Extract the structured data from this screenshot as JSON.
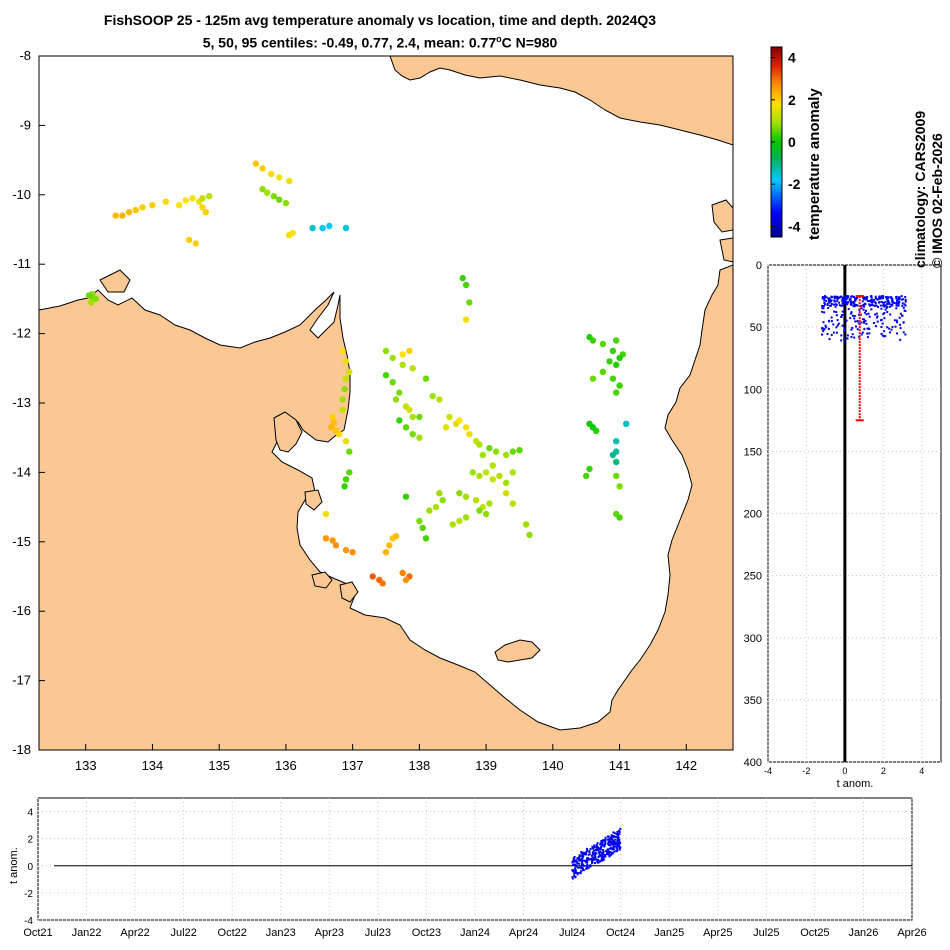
{
  "header": {
    "title_line1": "FishSOOP 25 - 125m avg temperature anomaly vs location, time and depth. 2024Q3",
    "title_line2_prefix": "5, 50, 95 centiles: -0.49, 0.77, 2.4, mean: 0.77",
    "title_line2_unit_sup": "o",
    "title_line2_suffix": "C N=980"
  },
  "side_labels": {
    "climatology": "climatology: CARS2009",
    "copyright": "© IMOS 02-Feb-2026",
    "colorbar_label": "temperature anomaly"
  },
  "colors": {
    "land": "#fbc894",
    "profile_points": "#0000ee",
    "centile_bar": "#ff0000"
  },
  "chart_data": [
    {
      "id": "map",
      "type": "scatter",
      "title": "",
      "xlabel": "",
      "ylabel": "",
      "xlim": [
        132.3,
        142.7
      ],
      "ylim": [
        -18,
        -8
      ],
      "xticks": [
        133,
        134,
        135,
        136,
        137,
        138,
        139,
        140,
        141,
        142
      ],
      "yticks": [
        -8,
        -9,
        -10,
        -11,
        -12,
        -13,
        -14,
        -15,
        -16,
        -17,
        -18
      ],
      "color_variable": "temperature anomaly",
      "clim": [
        -4.5,
        4.5
      ],
      "colorbar_ticks": [
        4,
        2,
        0,
        -2,
        -4
      ],
      "points": [
        [
          133.1,
          -11.43,
          0.8
        ],
        [
          133.1,
          -11.48,
          0.7
        ],
        [
          133.05,
          -11.45,
          0.6
        ],
        [
          133.15,
          -11.5,
          0.7
        ],
        [
          133.08,
          -11.55,
          0.9
        ],
        [
          133.45,
          -10.3,
          2.2
        ],
        [
          133.55,
          -10.3,
          2.3
        ],
        [
          133.65,
          -10.25,
          2.2
        ],
        [
          133.75,
          -10.22,
          2.1
        ],
        [
          133.85,
          -10.18,
          2.0
        ],
        [
          134.0,
          -10.15,
          2.0
        ],
        [
          134.2,
          -10.1,
          1.9
        ],
        [
          134.4,
          -10.15,
          1.8
        ],
        [
          134.5,
          -10.08,
          1.8
        ],
        [
          134.6,
          -10.05,
          1.7
        ],
        [
          134.7,
          -10.1,
          1.6
        ],
        [
          134.75,
          -10.18,
          1.9
        ],
        [
          134.8,
          -10.25,
          2.0
        ],
        [
          134.55,
          -10.65,
          2.0
        ],
        [
          134.65,
          -10.7,
          2.0
        ],
        [
          134.75,
          -10.05,
          1.2
        ],
        [
          134.85,
          -10.02,
          1.1
        ],
        [
          135.55,
          -9.55,
          2.1
        ],
        [
          135.65,
          -9.62,
          2.0
        ],
        [
          135.78,
          -9.7,
          1.9
        ],
        [
          135.9,
          -9.75,
          1.7
        ],
        [
          136.05,
          -9.8,
          1.6
        ],
        [
          135.65,
          -9.92,
          0.8
        ],
        [
          135.72,
          -9.97,
          0.9
        ],
        [
          135.82,
          -10.02,
          0.7
        ],
        [
          135.9,
          -10.07,
          0.6
        ],
        [
          136.0,
          -10.12,
          0.8
        ],
        [
          136.05,
          -10.58,
          1.7
        ],
        [
          136.1,
          -10.55,
          1.8
        ],
        [
          136.4,
          -10.48,
          -1.5
        ],
        [
          136.55,
          -10.48,
          -1.7
        ],
        [
          136.65,
          -10.45,
          -1.8
        ],
        [
          136.9,
          -10.48,
          -1.6
        ],
        [
          136.85,
          -12.25,
          1.8
        ],
        [
          136.9,
          -12.4,
          1.6
        ],
        [
          136.95,
          -12.55,
          1.4
        ],
        [
          136.9,
          -12.65,
          1.2
        ],
        [
          136.88,
          -12.8,
          0.8
        ],
        [
          136.85,
          -12.95,
          0.9
        ],
        [
          136.85,
          -13.1,
          1.2
        ],
        [
          136.7,
          -13.2,
          2.0
        ],
        [
          136.72,
          -13.28,
          2.2
        ],
        [
          136.68,
          -13.35,
          2.3
        ],
        [
          136.75,
          -13.4,
          2.1
        ],
        [
          136.8,
          -13.45,
          1.9
        ],
        [
          136.9,
          -13.55,
          1.5
        ],
        [
          136.95,
          -13.7,
          0.6
        ],
        [
          136.95,
          -14.0,
          0.5
        ],
        [
          136.9,
          -14.1,
          0.4
        ],
        [
          136.88,
          -14.2,
          0.3
        ],
        [
          136.6,
          -14.6,
          1.7
        ],
        [
          136.6,
          -14.95,
          2.6
        ],
        [
          136.7,
          -14.98,
          2.6
        ],
        [
          136.75,
          -15.05,
          2.7
        ],
        [
          136.9,
          -15.12,
          2.6
        ],
        [
          137.0,
          -15.15,
          2.7
        ],
        [
          137.3,
          -15.5,
          3.1
        ],
        [
          137.4,
          -15.55,
          3.0
        ],
        [
          137.45,
          -15.6,
          2.9
        ],
        [
          137.55,
          -15.05,
          2.2
        ],
        [
          137.6,
          -14.95,
          2.1
        ],
        [
          137.65,
          -14.92,
          2.2
        ],
        [
          137.5,
          -15.15,
          2.3
        ],
        [
          137.75,
          -15.45,
          2.8
        ],
        [
          137.85,
          -15.5,
          3.0
        ],
        [
          137.8,
          -15.55,
          2.7
        ],
        [
          137.5,
          -12.25,
          0.8
        ],
        [
          137.6,
          -12.35,
          0.9
        ],
        [
          137.75,
          -12.45,
          1.0
        ],
        [
          137.9,
          -12.5,
          1.1
        ],
        [
          137.75,
          -12.3,
          1.8
        ],
        [
          137.85,
          -12.25,
          2.0
        ],
        [
          137.5,
          -12.6,
          0.4
        ],
        [
          137.6,
          -12.7,
          0.6
        ],
        [
          137.7,
          -12.85,
          0.7
        ],
        [
          137.65,
          -12.95,
          0.8
        ],
        [
          137.8,
          -13.05,
          1.2
        ],
        [
          137.85,
          -13.1,
          1.4
        ],
        [
          137.7,
          -13.25,
          0.3
        ],
        [
          137.8,
          -13.35,
          0.5
        ],
        [
          137.9,
          -13.45,
          0.7
        ],
        [
          138.0,
          -13.5,
          0.9
        ],
        [
          137.9,
          -13.2,
          1.0
        ],
        [
          138.0,
          -13.2,
          0.6
        ],
        [
          138.1,
          -12.65,
          0.6
        ],
        [
          138.2,
          -12.9,
          0.9
        ],
        [
          138.3,
          -12.95,
          1.1
        ],
        [
          138.45,
          -13.2,
          1.3
        ],
        [
          138.55,
          -13.3,
          1.4
        ],
        [
          138.4,
          -13.35,
          1.5
        ],
        [
          138.6,
          -13.25,
          1.8
        ],
        [
          138.7,
          -13.35,
          1.7
        ],
        [
          138.75,
          -13.45,
          1.6
        ],
        [
          138.85,
          -13.55,
          1.2
        ],
        [
          138.9,
          -13.6,
          1.0
        ],
        [
          138.95,
          -13.75,
          0.9
        ],
        [
          139.05,
          -13.65,
          0.6
        ],
        [
          139.15,
          -13.7,
          0.8
        ],
        [
          139.3,
          -13.75,
          0.9
        ],
        [
          139.4,
          -13.7,
          0.6
        ],
        [
          139.5,
          -13.68,
          0.5
        ],
        [
          139.1,
          -13.9,
          1.1
        ],
        [
          138.8,
          -14.0,
          0.9
        ],
        [
          138.9,
          -14.05,
          1.0
        ],
        [
          139.0,
          -14.0,
          1.2
        ],
        [
          139.1,
          -14.1,
          1.3
        ],
        [
          139.2,
          -14.05,
          1.1
        ],
        [
          139.3,
          -14.15,
          0.9
        ],
        [
          139.4,
          -14.0,
          1.0
        ],
        [
          138.6,
          -14.3,
          0.8
        ],
        [
          138.7,
          -14.35,
          0.9
        ],
        [
          138.85,
          -14.4,
          1.1
        ],
        [
          138.95,
          -14.5,
          1.2
        ],
        [
          139.05,
          -14.45,
          1.0
        ],
        [
          138.9,
          -14.55,
          0.7
        ],
        [
          139.0,
          -14.6,
          0.8
        ],
        [
          138.7,
          -14.65,
          0.9
        ],
        [
          138.6,
          -14.7,
          1.2
        ],
        [
          138.5,
          -14.75,
          1.0
        ],
        [
          138.3,
          -14.3,
          0.9
        ],
        [
          138.35,
          -14.4,
          0.8
        ],
        [
          138.25,
          -14.5,
          1.0
        ],
        [
          138.15,
          -14.55,
          0.9
        ],
        [
          138.0,
          -14.7,
          0.7
        ],
        [
          138.05,
          -14.8,
          0.5
        ],
        [
          138.1,
          -14.95,
          0.4
        ],
        [
          137.8,
          -14.35,
          0.3
        ],
        [
          139.3,
          -14.3,
          1.3
        ],
        [
          139.4,
          -14.45,
          1.1
        ],
        [
          139.6,
          -14.75,
          0.9
        ],
        [
          139.65,
          -14.9,
          0.8
        ],
        [
          138.65,
          -11.2,
          0.3
        ],
        [
          138.7,
          -11.3,
          0.4
        ],
        [
          138.75,
          -11.55,
          0.6
        ],
        [
          138.7,
          -11.8,
          1.7
        ],
        [
          140.55,
          -12.05,
          0.2
        ],
        [
          140.6,
          -12.1,
          0.3
        ],
        [
          140.75,
          -12.15,
          0.5
        ],
        [
          140.95,
          -12.1,
          0.4
        ],
        [
          140.9,
          -12.25,
          0.3
        ],
        [
          141.05,
          -12.3,
          0.4
        ],
        [
          141.0,
          -12.35,
          0.2
        ],
        [
          140.85,
          -12.4,
          0.3
        ],
        [
          140.95,
          -12.45,
          0.2
        ],
        [
          140.75,
          -12.55,
          0.5
        ],
        [
          140.6,
          -12.65,
          0.6
        ],
        [
          140.9,
          -12.65,
          0.4
        ],
        [
          141.0,
          -12.75,
          0.3
        ],
        [
          140.95,
          -12.85,
          0.4
        ],
        [
          140.55,
          -13.3,
          0.1
        ],
        [
          140.6,
          -13.35,
          0.0
        ],
        [
          140.65,
          -13.4,
          0.2
        ],
        [
          141.1,
          -13.3,
          -1.4
        ],
        [
          140.95,
          -13.55,
          -1.3
        ],
        [
          140.95,
          -13.7,
          -1.2
        ],
        [
          140.9,
          -13.75,
          -1.1
        ],
        [
          140.95,
          -13.85,
          -1.0
        ],
        [
          140.55,
          -13.95,
          0.3
        ],
        [
          140.5,
          -14.05,
          0.4
        ],
        [
          140.95,
          -14.05,
          0.6
        ],
        [
          141.0,
          -14.2,
          0.7
        ],
        [
          140.95,
          -14.6,
          0.5
        ],
        [
          141.0,
          -14.65,
          0.4
        ]
      ]
    },
    {
      "id": "depth_profile",
      "type": "scatter",
      "title": "",
      "xlabel": "t anom.",
      "ylabel": "",
      "xlim": [
        -4,
        5
      ],
      "ylim": [
        0,
        400
      ],
      "y_reversed": true,
      "xticks": [
        -4,
        -2,
        0,
        2,
        4
      ],
      "yticks": [
        0,
        50,
        100,
        150,
        200,
        250,
        300,
        350,
        400
      ],
      "centile_bar": {
        "x": 0.77,
        "from_depth": 25,
        "to_depth": 125
      }
    },
    {
      "id": "time_series",
      "type": "scatter",
      "title": "",
      "xlabel": "",
      "ylabel": "t anom.",
      "ylim": [
        -4,
        5
      ],
      "yticks": [
        -4,
        -2,
        0,
        2,
        4
      ],
      "xtick_labels": [
        "Oct21",
        "Jan22",
        "Apr22",
        "Jul22",
        "Oct22",
        "Jan23",
        "Apr23",
        "Jul23",
        "Oct23",
        "Jan24",
        "Apr24",
        "Jul24",
        "Oct24",
        "Jan25",
        "Apr25",
        "Jul25",
        "Oct25",
        "Jan26",
        "Apr26"
      ],
      "data_span": {
        "from": "Jul24",
        "to": "Oct24"
      }
    }
  ]
}
